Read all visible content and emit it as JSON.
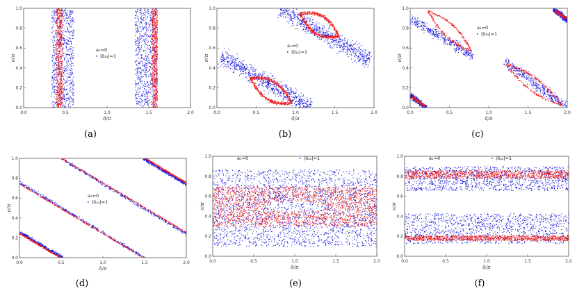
{
  "figure": {
    "captions": [
      "(a)",
      "(b)",
      "(c)",
      "(d)",
      "(e)",
      "(f)"
    ]
  },
  "colors": {
    "outer": "#1a1adf",
    "inner": "#ef1a1a",
    "frame": "#555555"
  },
  "chart_data": [
    {
      "id": "a",
      "type": "scatter",
      "xlabel": "δ/π",
      "ylabel": "σ/π",
      "xlim": [
        0,
        2
      ],
      "ylim": [
        0,
        1
      ],
      "xticks": [
        "0.0",
        "0.5",
        "1.0",
        "1.5",
        "2.0"
      ],
      "yticks": [
        "0.0",
        "0.2",
        "0.4",
        "0.6",
        "0.8",
        "1.0"
      ],
      "legend": [
        "a₁=0",
        "|δ₃₂|=1"
      ],
      "series": [
        {
          "name": "blue",
          "regions": [
            {
              "shape": "vband",
              "x0": 0.33,
              "x1": 0.6
            },
            {
              "shape": "vband",
              "x0": 1.33,
              "x1": 1.6
            }
          ]
        },
        {
          "name": "red",
          "regions": [
            {
              "shape": "vband",
              "x0": 0.39,
              "x1": 0.46
            },
            {
              "shape": "vband",
              "x0": 1.53,
              "x1": 1.6
            }
          ]
        }
      ]
    },
    {
      "id": "b",
      "type": "scatter",
      "xlabel": "δ/π",
      "ylabel": "σ/π",
      "xlim": [
        0,
        2
      ],
      "ylim": [
        0,
        1
      ],
      "xticks": [
        "0.0",
        "0.5",
        "1.0",
        "1.5",
        "2.0"
      ],
      "yticks": [
        "0.0",
        "0.2",
        "0.4",
        "0.6",
        "0.8",
        "1.0"
      ],
      "legend": [
        "a₁=0",
        "|δ₂₁|=1"
      ],
      "series": [
        {
          "name": "blue",
          "regions": [
            {
              "shape": "line",
              "from": [
                0.05,
                0.52
              ],
              "to": [
                1.2,
                0.0
              ],
              "halfwidth": 0.12
            },
            {
              "shape": "line",
              "from": [
                0.8,
                1.0
              ],
              "to": [
                1.95,
                0.48
              ],
              "halfwidth": 0.12
            }
          ]
        },
        {
          "name": "red",
          "regions": [
            {
              "shape": "ring",
              "from": [
                0.42,
                0.3
              ],
              "to": [
                0.95,
                0.05
              ],
              "halfwidth": 0.07
            },
            {
              "shape": "ring",
              "from": [
                1.05,
                0.95
              ],
              "to": [
                1.55,
                0.72
              ],
              "halfwidth": 0.07
            }
          ]
        }
      ]
    },
    {
      "id": "c",
      "type": "scatter",
      "xlabel": "δ/π",
      "ylabel": "σ/π",
      "xlim": [
        0,
        2
      ],
      "ylim": [
        0,
        1
      ],
      "xticks": [
        "0.0",
        "0.5",
        "1.0",
        "1.5",
        "2.0"
      ],
      "yticks": [
        "0.0",
        "0.2",
        "0.4",
        "0.6",
        "0.8",
        "1.0"
      ],
      "legend": [
        "a₁=0",
        "|δ₃₁|=1"
      ],
      "series": [
        {
          "name": "blue",
          "regions": [
            {
              "shape": "line",
              "from": [
                0.0,
                0.9
              ],
              "to": [
                0.8,
                0.52
              ],
              "halfwidth": 0.07
            },
            {
              "shape": "line",
              "from": [
                1.2,
                0.47
              ],
              "to": [
                2.0,
                0.0
              ],
              "halfwidth": 0.07
            },
            {
              "shape": "line",
              "from": [
                0.0,
                0.13
              ],
              "to": [
                0.2,
                0.0
              ],
              "halfwidth": 0.04
            },
            {
              "shape": "line",
              "from": [
                1.82,
                1.0
              ],
              "to": [
                2.0,
                0.88
              ],
              "halfwidth": 0.04
            }
          ]
        },
        {
          "name": "red",
          "regions": [
            {
              "shape": "ring",
              "from": [
                0.22,
                0.98
              ],
              "to": [
                0.78,
                0.57
              ],
              "halfwidth": 0.05
            },
            {
              "shape": "ring",
              "from": [
                1.22,
                0.44
              ],
              "to": [
                1.92,
                0.03
              ],
              "halfwidth": 0.05
            },
            {
              "shape": "line",
              "from": [
                0.02,
                0.11
              ],
              "to": [
                0.18,
                0.02
              ],
              "halfwidth": 0.015
            },
            {
              "shape": "line",
              "from": [
                1.84,
                0.98
              ],
              "to": [
                1.98,
                0.9
              ],
              "halfwidth": 0.015
            }
          ]
        }
      ]
    },
    {
      "id": "d",
      "type": "scatter",
      "xlabel": "δ/π",
      "ylabel": "σ/π",
      "xlim": [
        0,
        2
      ],
      "ylim": [
        0,
        1
      ],
      "xticks": [
        "0.0",
        "0.5",
        "1.0",
        "1.5",
        "2.0"
      ],
      "yticks": [
        "0.0",
        "0.2",
        "0.4",
        "0.6",
        "0.8",
        "1.0"
      ],
      "legend": [
        "a₁=0",
        "|δ₃₂|=1"
      ],
      "series": [
        {
          "name": "blue",
          "regions": [
            {
              "shape": "line",
              "from": [
                0.0,
                0.76
              ],
              "to": [
                1.5,
                0.0
              ],
              "halfwidth": 0.022
            },
            {
              "shape": "line",
              "from": [
                0.5,
                1.0
              ],
              "to": [
                2.0,
                0.24
              ],
              "halfwidth": 0.022
            },
            {
              "shape": "line",
              "from": [
                0.0,
                0.26
              ],
              "to": [
                0.52,
                0.0
              ],
              "halfwidth": 0.022
            },
            {
              "shape": "line",
              "from": [
                1.48,
                1.0
              ],
              "to": [
                2.0,
                0.74
              ],
              "halfwidth": 0.022
            }
          ]
        },
        {
          "name": "red",
          "regions": [
            {
              "shape": "line",
              "from": [
                0.0,
                0.745
              ],
              "to": [
                1.49,
                0.0
              ],
              "halfwidth": 0.009
            },
            {
              "shape": "line",
              "from": [
                0.51,
                1.0
              ],
              "to": [
                2.0,
                0.255
              ],
              "halfwidth": 0.009
            },
            {
              "shape": "line",
              "from": [
                0.0,
                0.245
              ],
              "to": [
                0.49,
                0.0
              ],
              "halfwidth": 0.009
            },
            {
              "shape": "line",
              "from": [
                1.51,
                1.0
              ],
              "to": [
                2.0,
                0.755
              ],
              "halfwidth": 0.009
            }
          ]
        }
      ]
    },
    {
      "id": "e",
      "type": "scatter",
      "xlabel": "δ/π",
      "ylabel": "σ/π",
      "xlim": [
        0,
        2
      ],
      "ylim": [
        0,
        1
      ],
      "xticks": [
        "0.0",
        "0.5",
        "1.0",
        "1.5",
        "2.0"
      ],
      "yticks": [
        "0.0",
        "0.2",
        "0.4",
        "0.6",
        "0.8",
        "1.0"
      ],
      "legend": [
        "a₁=0",
        "|δ₃₂|=1"
      ],
      "series": [
        {
          "name": "blue",
          "regions": [
            {
              "shape": "hband",
              "y0": 0.1,
              "y1": 0.87
            }
          ]
        },
        {
          "name": "red",
          "regions": [
            {
              "shape": "hband",
              "y0": 0.3,
              "y1": 0.7,
              "hole": [
                1.0,
                0.5,
                0.38,
                0.05
              ]
            }
          ]
        }
      ]
    },
    {
      "id": "f",
      "type": "scatter",
      "xlabel": "δ/π",
      "ylabel": "σ/π",
      "xlim": [
        0,
        2
      ],
      "ylim": [
        0,
        1
      ],
      "xticks": [
        "0.0",
        "0.5",
        "1.0",
        "1.5",
        "2.0"
      ],
      "yticks": [
        "0.0",
        "0.2",
        "0.4",
        "0.6",
        "0.8",
        "1.0"
      ],
      "legend": [
        "a₁=0",
        "|δ₃₂|=1"
      ],
      "series": [
        {
          "name": "blue",
          "regions": [
            {
              "shape": "hband",
              "y0": 0.13,
              "y1": 0.43
            },
            {
              "shape": "hband",
              "y0": 0.66,
              "y1": 0.9
            }
          ]
        },
        {
          "name": "red",
          "regions": [
            {
              "shape": "hband",
              "y0": 0.16,
              "y1": 0.21
            },
            {
              "shape": "hband",
              "y0": 0.78,
              "y1": 0.86
            }
          ]
        }
      ]
    }
  ]
}
